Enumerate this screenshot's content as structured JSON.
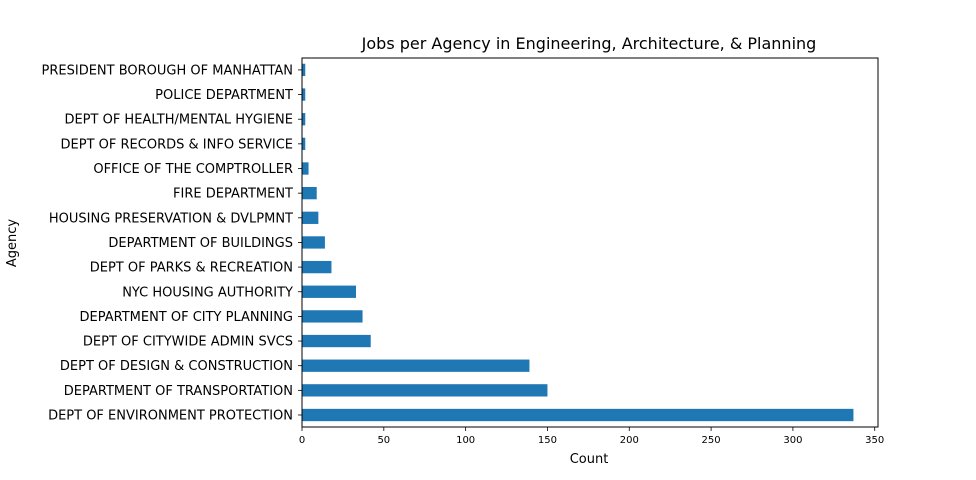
{
  "chart_data": {
    "type": "bar",
    "orientation": "horizontal",
    "title": "Jobs per Agency in Engineering, Architecture, & Planning",
    "xlabel": "Count",
    "ylabel": "Agency",
    "xlim": [
      0,
      352
    ],
    "xticks": [
      0,
      50,
      100,
      150,
      200,
      250,
      300,
      350
    ],
    "grid": false,
    "bar_color": "#1f77b4",
    "categories": [
      "DEPT OF ENVIRONMENT PROTECTION",
      "DEPARTMENT OF TRANSPORTATION",
      "DEPT OF DESIGN & CONSTRUCTION",
      "DEPT OF CITYWIDE ADMIN SVCS",
      "DEPARTMENT OF CITY PLANNING",
      "NYC HOUSING AUTHORITY",
      "DEPT OF PARKS & RECREATION",
      "DEPARTMENT OF BUILDINGS",
      "HOUSING PRESERVATION & DVLPMNT",
      "FIRE DEPARTMENT",
      "OFFICE OF THE COMPTROLLER",
      "DEPT OF RECORDS & INFO SERVICE",
      "DEPT OF HEALTH/MENTAL HYGIENE",
      "POLICE DEPARTMENT",
      "PRESIDENT BOROUGH OF MANHATTAN"
    ],
    "values": [
      337,
      150,
      139,
      42,
      37,
      33,
      18,
      14,
      10,
      9,
      4,
      2,
      2,
      2,
      2
    ]
  }
}
